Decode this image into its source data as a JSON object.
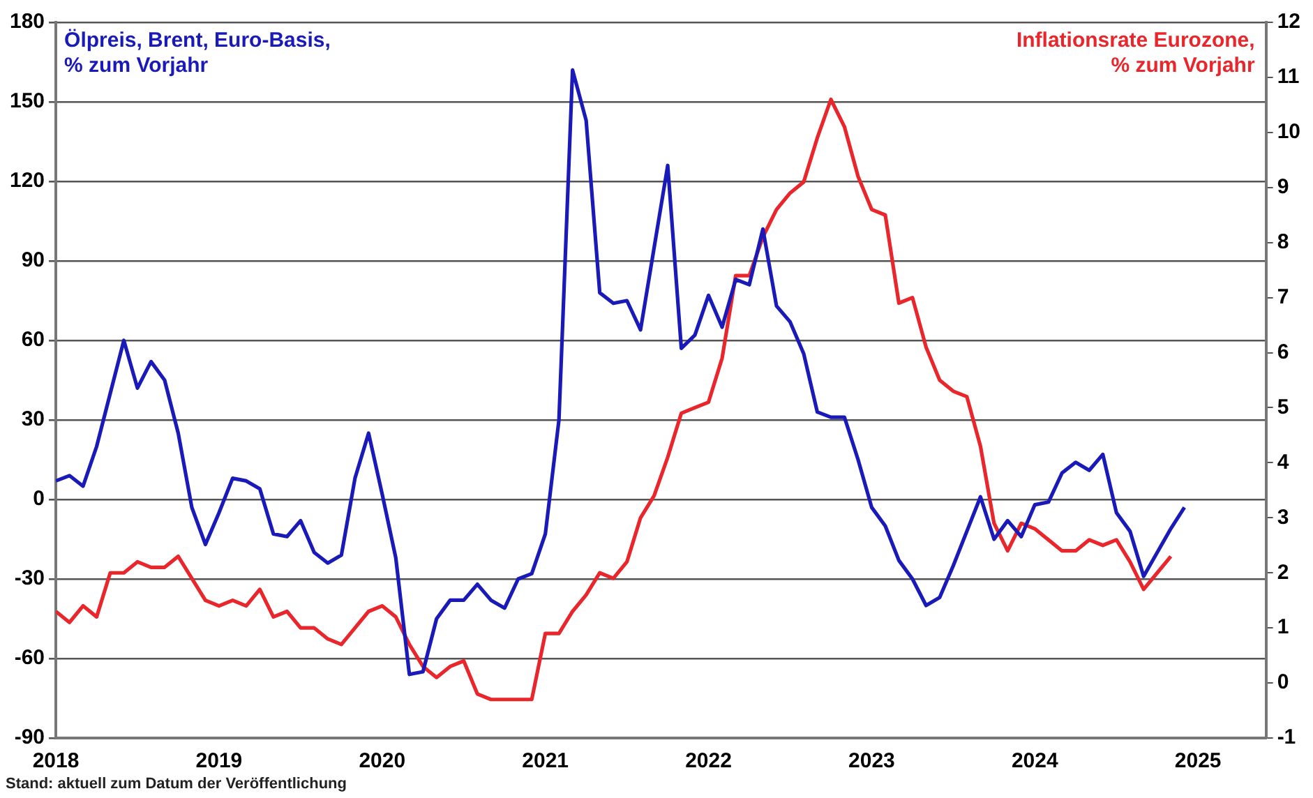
{
  "chart_data": {
    "type": "line",
    "x": [
      "2018-01",
      "2018-02",
      "2018-03",
      "2018-04",
      "2018-05",
      "2018-06",
      "2018-07",
      "2018-08",
      "2018-09",
      "2018-10",
      "2018-11",
      "2018-12",
      "2019-01",
      "2019-02",
      "2019-03",
      "2019-04",
      "2019-05",
      "2019-06",
      "2019-07",
      "2019-08",
      "2019-09",
      "2019-10",
      "2019-11",
      "2019-12",
      "2020-01",
      "2020-02",
      "2020-03",
      "2020-04",
      "2020-05",
      "2020-06",
      "2020-07",
      "2020-08",
      "2020-09",
      "2020-10",
      "2020-11",
      "2020-12",
      "2021-01",
      "2021-02",
      "2021-03",
      "2021-04",
      "2021-05",
      "2021-06",
      "2021-07",
      "2021-08",
      "2021-09",
      "2021-10",
      "2021-11",
      "2021-12",
      "2022-01",
      "2022-02",
      "2022-03",
      "2022-04",
      "2022-05",
      "2022-06",
      "2022-07",
      "2022-08",
      "2022-09",
      "2022-10",
      "2022-11",
      "2022-12",
      "2023-01",
      "2023-02",
      "2023-03",
      "2023-04",
      "2023-05",
      "2023-06",
      "2023-07",
      "2023-08",
      "2023-09",
      "2023-10",
      "2023-11",
      "2023-12",
      "2024-01",
      "2024-02",
      "2024-03",
      "2024-04",
      "2024-05",
      "2024-06",
      "2024-07",
      "2024-08",
      "2024-09",
      "2024-10",
      "2024-11",
      "2024-12"
    ],
    "series": [
      {
        "name": "Ölpreis, Brent, Euro-Basis,\n% zum Vorjahr",
        "color": "#1a1ab8",
        "values": [
          7,
          9,
          5,
          20,
          40,
          60,
          42,
          52,
          45,
          25,
          -3,
          -17,
          -5,
          8,
          7,
          4,
          -13,
          -14,
          -8,
          -20,
          -24,
          -21,
          8,
          25,
          2,
          -22,
          -66,
          -65,
          -45,
          -38,
          -38,
          -32,
          -38,
          -41,
          -30,
          -28,
          -13,
          30,
          162,
          143,
          78,
          74,
          75,
          64,
          95,
          126,
          57,
          62,
          77,
          65,
          83,
          81,
          102,
          73,
          67,
          55,
          33,
          31,
          31,
          15,
          -3,
          -10,
          -23,
          -30,
          -40,
          -37,
          -25,
          -12,
          1,
          -15,
          -8,
          -14,
          -2,
          -1,
          10,
          14,
          11,
          17,
          -5,
          -12,
          -29,
          -20,
          -11,
          -3
        ]
      },
      {
        "name": "Inflationsrate Eurozone,\n% zum Vorjahr",
        "color": "#e8262b",
        "axis": "y2",
        "values": [
          1.3,
          1.1,
          1.4,
          1.2,
          2.0,
          2.0,
          2.2,
          2.1,
          2.1,
          2.3,
          1.9,
          1.5,
          1.4,
          1.5,
          1.4,
          1.7,
          1.2,
          1.3,
          1.0,
          1.0,
          0.8,
          0.7,
          1.0,
          1.3,
          1.4,
          1.2,
          0.7,
          0.3,
          0.1,
          0.3,
          0.4,
          -0.2,
          -0.3,
          -0.3,
          -0.3,
          -0.3,
          0.9,
          0.9,
          1.3,
          1.6,
          2.0,
          1.9,
          2.2,
          3.0,
          3.4,
          4.1,
          4.9,
          5.0,
          5.1,
          5.9,
          7.4,
          7.4,
          8.1,
          8.6,
          8.9,
          9.1,
          9.9,
          10.6,
          10.1,
          9.2,
          8.6,
          8.5,
          6.9,
          7.0,
          6.1,
          5.5,
          5.3,
          5.2,
          4.3,
          2.9,
          2.4,
          2.9,
          2.8,
          2.6,
          2.4,
          2.4,
          2.6,
          2.5,
          2.6,
          2.2,
          1.7,
          2.0,
          2.3,
          null
        ]
      }
    ],
    "xlim": [
      "2018",
      "2025-06"
    ],
    "xticks": [
      "2018",
      "2019",
      "2020",
      "2021",
      "2022",
      "2023",
      "2024",
      "2025"
    ],
    "ylim": [
      -90,
      180
    ],
    "yticks": [
      -90,
      -60,
      -30,
      0,
      30,
      60,
      90,
      120,
      150,
      180
    ],
    "y2lim": [
      -1,
      12
    ],
    "y2ticks": [
      -1,
      0,
      1,
      2,
      3,
      4,
      5,
      6,
      7,
      8,
      9,
      10,
      11,
      12
    ],
    "grid": "y",
    "legend": false,
    "line_style": "solid",
    "marker": "none",
    "annotations": [
      "Stand: aktuell zum Datum der Veröffentlichung"
    ]
  }
}
